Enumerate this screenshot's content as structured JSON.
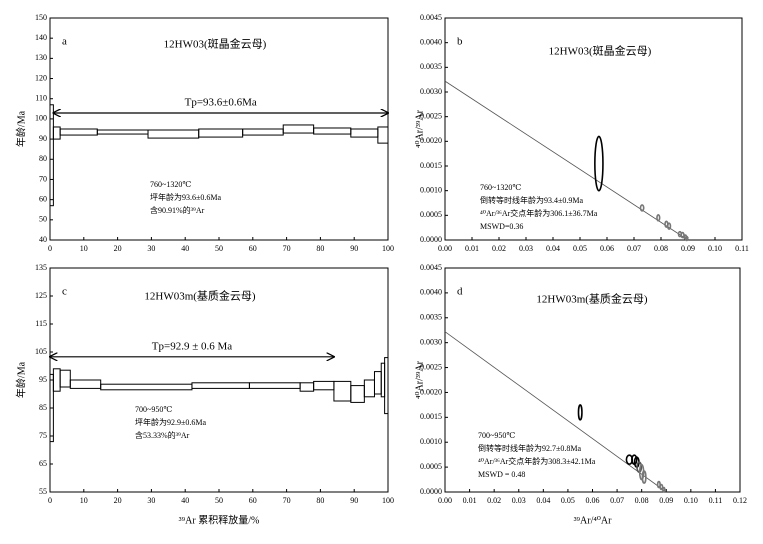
{
  "chart_data": [
    {
      "type": "age_spectrum",
      "panel": "a",
      "title": "12HW03(斑晶金云母)",
      "ylabel": "年龄/Ma",
      "xlim": [
        0,
        100
      ],
      "xticks": [
        0,
        10,
        20,
        30,
        40,
        50,
        60,
        70,
        80,
        90,
        100
      ],
      "ylim": [
        40,
        150
      ],
      "yticks": [
        40,
        50,
        60,
        70,
        80,
        90,
        100,
        110,
        120,
        130,
        140,
        150
      ],
      "widths": [
        1,
        2,
        11,
        15,
        15,
        13,
        12,
        9,
        11,
        8,
        3
      ],
      "values": [
        82,
        93,
        93.5,
        93.5,
        92.5,
        93,
        93.5,
        95,
        94,
        93,
        92
      ],
      "errors": [
        25,
        3,
        1.5,
        1,
        2,
        2,
        1.5,
        2,
        1.5,
        2,
        4
      ],
      "plateau_steps": [
        1,
        10
      ],
      "plateau_label": "Tp=93.6±0.6Ma",
      "annotations": [
        "760~1320℃",
        "坪年龄为93.6±0.6Ma",
        "含90.91%的³⁹Ar"
      ],
      "color": "#000000"
    },
    {
      "type": "isochron",
      "panel": "b",
      "title": "12HW03(斑晶金云母)",
      "ylabel": "⁴⁰Ar/³⁹Ar",
      "xlim": [
        0,
        0.11
      ],
      "xticks": [
        {
          "value": 0,
          "label": "0.00"
        },
        {
          "value": 0.01,
          "label": "0.01"
        },
        {
          "value": 0.02,
          "label": "0.02"
        },
        {
          "value": 0.03,
          "label": "0.03"
        },
        {
          "value": 0.04,
          "label": "0.04"
        },
        {
          "value": 0.05,
          "label": "0.05"
        },
        {
          "value": 0.06,
          "label": "0.06"
        },
        {
          "value": 0.07,
          "label": "0.07"
        },
        {
          "value": 0.08,
          "label": "0.08"
        },
        {
          "value": 0.09,
          "label": "0.09"
        },
        {
          "value": 0.1,
          "label": "0.10"
        },
        {
          "value": 0.11,
          "label": "0.11"
        }
      ],
      "ylim": [
        0,
        0.0045
      ],
      "yticks": [
        {
          "value": 0,
          "label": "0.0000"
        },
        {
          "value": 0.0005,
          "label": "0.0005"
        },
        {
          "value": 0.001,
          "label": "0.0010"
        },
        {
          "value": 0.0015,
          "label": "0.0015"
        },
        {
          "value": 0.002,
          "label": "0.0020"
        },
        {
          "value": 0.0025,
          "label": "0.0025"
        },
        {
          "value": 0.003,
          "label": "0.0030"
        },
        {
          "value": 0.0035,
          "label": "0.0035"
        },
        {
          "value": 0.004,
          "label": "0.0040"
        },
        {
          "value": 0.0045,
          "label": "0.0045"
        }
      ],
      "isochron": {
        "x": [
          0,
          0.09
        ],
        "y": [
          0.00322,
          0
        ]
      },
      "x": [
        0.057,
        0.073,
        0.079,
        0.082,
        0.083,
        0.087,
        0.088,
        0.089,
        0.0895
      ],
      "values": [
        0.00155,
        0.00065,
        0.00045,
        0.00032,
        0.00028,
        0.00012,
        0.0001,
        6e-05,
        3e-05
      ],
      "x_err": [
        0.0015,
        0.0006,
        0.0005,
        0.0005,
        0.0005,
        0.0005,
        0.0005,
        0.0004,
        0.0004
      ],
      "y_err": [
        0.00055,
        6e-05,
        6e-05,
        6e-05,
        6e-05,
        5e-05,
        5e-05,
        4e-05,
        4e-05
      ],
      "point_colors": [
        "#000000",
        "#777777",
        "#777777",
        "#777777",
        "#777777",
        "#777777",
        "#777777",
        "#777777",
        "#777777"
      ],
      "annotations": [
        "760~1320℃",
        "倒转等时线年龄为93.4±0.9Ma",
        "⁴⁰Ar/³⁶Ar交点年龄为306.1±36.7Ma",
        "MSWD=0.36"
      ]
    },
    {
      "type": "age_spectrum",
      "panel": "c",
      "title": "12HW03m(基质金云母)",
      "ylabel": "年龄/Ma",
      "xlabel": "³⁹Ar 累积释放量/%",
      "xlim": [
        0,
        100
      ],
      "xticks": [
        0,
        10,
        20,
        30,
        40,
        50,
        60,
        70,
        80,
        90,
        100
      ],
      "ylim": [
        55,
        135
      ],
      "yticks": [
        55,
        65,
        75,
        85,
        95,
        105,
        115,
        125,
        135
      ],
      "widths": [
        1,
        2,
        3,
        9,
        27,
        17,
        15,
        4,
        6,
        5,
        4,
        3,
        2,
        1,
        1
      ],
      "values": [
        85,
        95,
        95.5,
        93.5,
        92.5,
        93,
        93,
        92.5,
        93,
        91,
        90,
        92,
        94,
        95,
        93
      ],
      "errors": [
        12,
        4,
        3,
        1.5,
        1,
        1,
        1,
        1.5,
        1.5,
        3.5,
        3,
        3,
        4,
        6,
        10
      ],
      "plateau_steps": [
        0,
        8
      ],
      "plateau_label": "Tp=92.9 ± 0.6 Ma",
      "annotations": [
        "700~950℃",
        "坪年龄为92.9±0.6Ma",
        "含53.33%的³⁹Ar"
      ],
      "color": "#000000"
    },
    {
      "type": "isochron",
      "panel": "d",
      "title": "12HW03m(基质金云母)",
      "ylabel": "⁴⁰Ar/³⁹Ar",
      "xlabel": "³⁹Ar/⁴⁰Ar",
      "xlim": [
        0,
        0.12
      ],
      "xticks": [
        {
          "value": 0,
          "label": "0.00"
        },
        {
          "value": 0.01,
          "label": "0.01"
        },
        {
          "value": 0.02,
          "label": "0.02"
        },
        {
          "value": 0.03,
          "label": "0.03"
        },
        {
          "value": 0.04,
          "label": "0.04"
        },
        {
          "value": 0.05,
          "label": "0.05"
        },
        {
          "value": 0.06,
          "label": "0.06"
        },
        {
          "value": 0.07,
          "label": "0.07"
        },
        {
          "value": 0.08,
          "label": "0.08"
        },
        {
          "value": 0.09,
          "label": "0.09"
        },
        {
          "value": 0.1,
          "label": "0.10"
        },
        {
          "value": 0.11,
          "label": "0.11"
        },
        {
          "value": 0.12,
          "label": "0.12"
        }
      ],
      "ylim": [
        0,
        0.0045
      ],
      "yticks": [
        {
          "value": 0,
          "label": "0.0000"
        },
        {
          "value": 0.0005,
          "label": "0.0005"
        },
        {
          "value": 0.001,
          "label": "0.0010"
        },
        {
          "value": 0.0015,
          "label": "0.0015"
        },
        {
          "value": 0.002,
          "label": "0.0020"
        },
        {
          "value": 0.0025,
          "label": "0.0025"
        },
        {
          "value": 0.003,
          "label": "0.0030"
        },
        {
          "value": 0.0035,
          "label": "0.0035"
        },
        {
          "value": 0.004,
          "label": "0.0040"
        },
        {
          "value": 0.0045,
          "label": "0.0045"
        }
      ],
      "isochron": {
        "x": [
          0,
          0.09
        ],
        "y": [
          0.00322,
          0
        ]
      },
      "x": [
        0.055,
        0.075,
        0.077,
        0.078,
        0.079,
        0.08,
        0.081,
        0.087,
        0.088,
        0.089
      ],
      "values": [
        0.0016,
        0.00065,
        0.00065,
        0.0006,
        0.0005,
        0.0004,
        0.0003,
        0.00015,
        0.0001,
        5e-05
      ],
      "x_err": [
        0.0007,
        0.0012,
        0.001,
        0.0009,
        0.0009,
        0.0008,
        0.0007,
        0.0005,
        0.0005,
        0.0004
      ],
      "y_err": [
        0.00015,
        9e-05,
        9e-05,
        0.0001,
        0.0001,
        0.00015,
        0.00012,
        6e-05,
        5e-05,
        4e-05
      ],
      "point_colors": [
        "#000000",
        "#000000",
        "#000000",
        "#000000",
        "#555555",
        "#777777",
        "#777777",
        "#777777",
        "#777777",
        "#777777"
      ],
      "annotations": [
        "700~950℃",
        "倒转等时线年龄为92.7±0.8Ma",
        "⁴⁰Ar/³⁶Ar交点年龄为308.3±42.1Ma",
        "MSWD = 0.48"
      ]
    }
  ]
}
